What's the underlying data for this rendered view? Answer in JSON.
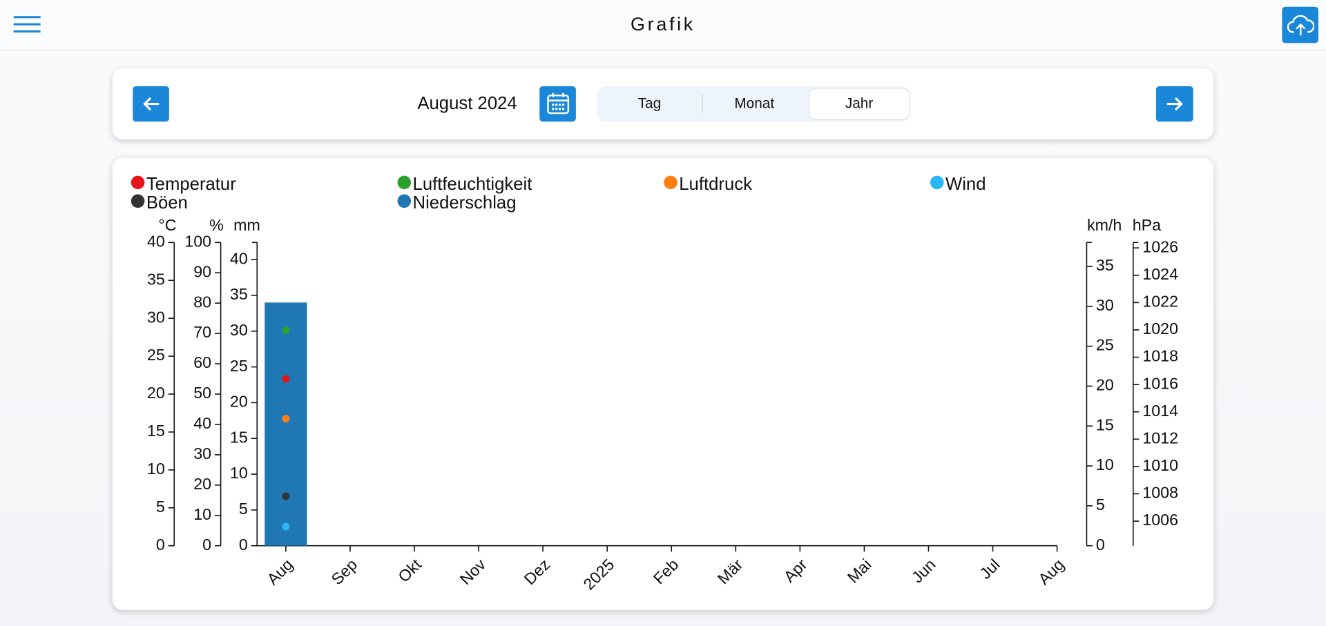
{
  "header": {
    "title": "Grafik"
  },
  "nav": {
    "period": "August 2024",
    "tabs": [
      "Tag",
      "Monat",
      "Jahr"
    ],
    "selected": 2
  },
  "chart_data": {
    "type": "combo",
    "categories": [
      "Aug",
      "Sep",
      "Okt",
      "Nov",
      "Dez",
      "2025",
      "Feb",
      "Mär",
      "Apr",
      "Mai",
      "Jun",
      "Jul",
      "Aug"
    ],
    "axes": [
      {
        "unit": "°C",
        "lim": [
          0,
          40
        ],
        "ticks": [
          0,
          5,
          10,
          15,
          20,
          25,
          30,
          35,
          40
        ]
      },
      {
        "unit": "%",
        "lim": [
          0,
          100
        ],
        "ticks": [
          0,
          10,
          20,
          30,
          40,
          50,
          60,
          70,
          80,
          90,
          100
        ]
      },
      {
        "unit": "mm",
        "lim": [
          0,
          42.4
        ],
        "ticks": [
          0,
          5,
          10,
          15,
          20,
          25,
          30,
          35,
          40
        ]
      },
      {
        "unit": "km/h",
        "lim": [
          0,
          38
        ],
        "ticks": [
          0,
          5,
          10,
          15,
          20,
          25,
          30,
          35
        ]
      },
      {
        "unit": "hPa",
        "lim": [
          1004.2,
          1026.4
        ],
        "ticks": [
          1006,
          1008,
          1010,
          1012,
          1014,
          1016,
          1018,
          1020,
          1022,
          1024,
          1026
        ]
      }
    ],
    "series": [
      {
        "name": "Temperatur",
        "type": "scatter",
        "color": "#e8141a",
        "axis": 0,
        "values": [
          22,
          null,
          null,
          null,
          null,
          null,
          null,
          null,
          null,
          null,
          null,
          null,
          null
        ]
      },
      {
        "name": "Luftfeuchtigkeit",
        "type": "scatter",
        "color": "#2ca02c",
        "axis": 1,
        "values": [
          71,
          null,
          null,
          null,
          null,
          null,
          null,
          null,
          null,
          null,
          null,
          null,
          null
        ]
      },
      {
        "name": "Luftdruck",
        "type": "scatter",
        "color": "#ff7f0e",
        "axis": 4,
        "values": [
          1013.5,
          null,
          null,
          null,
          null,
          null,
          null,
          null,
          null,
          null,
          null,
          null,
          null
        ]
      },
      {
        "name": "Wind",
        "type": "scatter",
        "color": "#29b6f6",
        "axis": 3,
        "values": [
          2.4,
          null,
          null,
          null,
          null,
          null,
          null,
          null,
          null,
          null,
          null,
          null,
          null
        ]
      },
      {
        "name": "Böen",
        "type": "scatter",
        "color": "#333333",
        "axis": 3,
        "values": [
          6.2,
          null,
          null,
          null,
          null,
          null,
          null,
          null,
          null,
          null,
          null,
          null,
          null
        ]
      },
      {
        "name": "Niederschlag",
        "type": "bar",
        "color": "#1f77b4",
        "axis": 2,
        "values": [
          34,
          null,
          null,
          null,
          null,
          null,
          null,
          null,
          null,
          null,
          null,
          null,
          null
        ]
      }
    ]
  }
}
